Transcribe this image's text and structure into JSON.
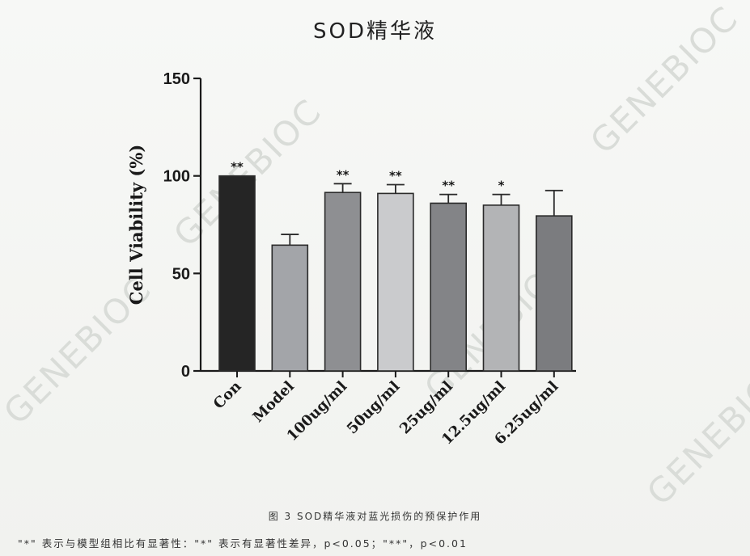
{
  "chart_data": {
    "type": "bar",
    "title": "SOD精华液",
    "ylabel": "Cell Viability (%)",
    "xlabel": "",
    "ylim": [
      0,
      150
    ],
    "yticks": [
      0,
      50,
      100,
      150
    ],
    "categories": [
      "Con",
      "Model",
      "100ug/ml",
      "50ug/ml",
      "25ug/ml",
      "12.5ug/ml",
      "6.25ug/ml"
    ],
    "values": [
      100,
      64.5,
      91.5,
      91,
      86,
      85,
      79.5
    ],
    "errors": [
      0,
      5.5,
      4.5,
      4.5,
      4.5,
      5.5,
      13
    ],
    "significance": [
      "**",
      "",
      "**",
      "**",
      "**",
      "*",
      ""
    ],
    "colors": [
      "#252525",
      "#a3a5a9",
      "#8e8f92",
      "#cacbcd",
      "#838487",
      "#b3b4b6",
      "#7b7c7f"
    ]
  },
  "watermark_text": "GENEBIOC",
  "caption": "图 3 SOD精华液对蓝光损伤的预保护作用",
  "note": "\"*\" 表示与模型组相比有显著性：\"*\" 表示有显著性差异，p<0.05；\"**\"，p<0.01"
}
